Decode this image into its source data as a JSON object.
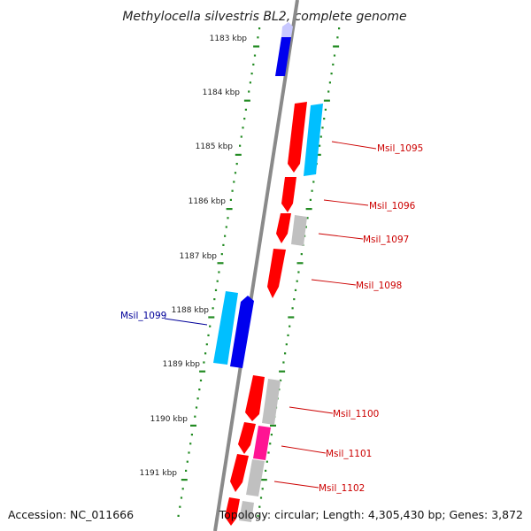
{
  "title": "Methylocella silvestris BL2, complete genome",
  "accession": "Accession: NC_011666",
  "topology": "Topology: circular; Length: 4,305,430 bp; Genes: 3,872",
  "colors": {
    "backbone": "#8a8a8a",
    "tick": "#228b22",
    "forward_gene": "#ff0000",
    "reverse_gene": "#0000ee",
    "cyan_gene": "#00bfff",
    "grey_gene": "#c0c0c0",
    "pink_gene": "#ff1493",
    "label_red": "#cc0000",
    "label_blue": "#000099"
  },
  "scale_labels": [
    "1183 kbp",
    "1184 kbp",
    "1185 kbp",
    "1186 kbp",
    "1187 kbp",
    "1188 kbp",
    "1189 kbp",
    "1190 kbp",
    "1191 kbp"
  ],
  "gene_labels": [
    {
      "text": "Msil_1095",
      "color": "red"
    },
    {
      "text": "Msil_1096",
      "color": "red"
    },
    {
      "text": "Msil_1097",
      "color": "red"
    },
    {
      "text": "Msil_1098",
      "color": "red"
    },
    {
      "text": "Msil_1099",
      "color": "blue"
    },
    {
      "text": "Msil_1100",
      "color": "red"
    },
    {
      "text": "Msil_1101",
      "color": "red"
    },
    {
      "text": "Msil_1102",
      "color": "red"
    }
  ]
}
